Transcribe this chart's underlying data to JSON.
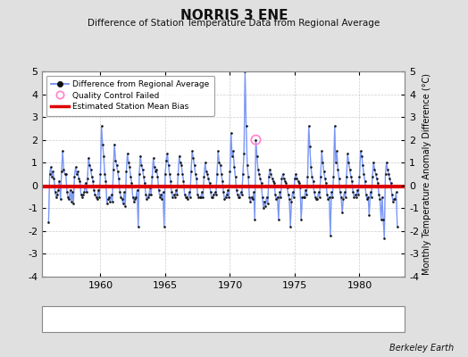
{
  "title": "NORRIS 3 ENE",
  "subtitle": "Difference of Station Temperature Data from Regional Average",
  "ylabel": "Monthly Temperature Anomaly Difference (°C)",
  "credit": "Berkeley Earth",
  "ylim": [
    -4,
    5
  ],
  "xlim": [
    1955.5,
    1983.5
  ],
  "bias": -0.05,
  "xticks": [
    1960,
    1965,
    1970,
    1975,
    1980
  ],
  "yticks": [
    -4,
    -3,
    -2,
    -1,
    0,
    1,
    2,
    3,
    4,
    5
  ],
  "bg_color": "#e0e0e0",
  "plot_bg_color": "#ffffff",
  "line_color": "#6688ee",
  "line_color_light": "#aabbff",
  "dot_color": "#111111",
  "bias_color": "#dd0000",
  "qc_fail_x": 1972.0,
  "qc_fail_y": 2.0,
  "data": [
    [
      1956.0,
      -1.6
    ],
    [
      1956.083,
      0.5
    ],
    [
      1956.167,
      0.8
    ],
    [
      1956.25,
      0.4
    ],
    [
      1956.333,
      0.6
    ],
    [
      1956.417,
      0.3
    ],
    [
      1956.5,
      -0.3
    ],
    [
      1956.583,
      -0.5
    ],
    [
      1956.667,
      -0.4
    ],
    [
      1956.75,
      -0.2
    ],
    [
      1956.833,
      0.2
    ],
    [
      1956.917,
      -0.6
    ],
    [
      1957.0,
      0.6
    ],
    [
      1957.083,
      1.5
    ],
    [
      1957.167,
      0.7
    ],
    [
      1957.25,
      0.5
    ],
    [
      1957.333,
      0.5
    ],
    [
      1957.417,
      -0.3
    ],
    [
      1957.5,
      -0.5
    ],
    [
      1957.583,
      -0.6
    ],
    [
      1957.667,
      -0.2
    ],
    [
      1957.75,
      -0.7
    ],
    [
      1957.833,
      -0.3
    ],
    [
      1957.917,
      -0.8
    ],
    [
      1958.0,
      0.4
    ],
    [
      1958.083,
      0.8
    ],
    [
      1958.167,
      0.5
    ],
    [
      1958.25,
      0.6
    ],
    [
      1958.333,
      0.3
    ],
    [
      1958.417,
      0.2
    ],
    [
      1958.5,
      -0.4
    ],
    [
      1958.583,
      -0.5
    ],
    [
      1958.667,
      -0.4
    ],
    [
      1958.75,
      -0.3
    ],
    [
      1958.833,
      0.1
    ],
    [
      1958.917,
      -0.3
    ],
    [
      1959.0,
      0.3
    ],
    [
      1959.083,
      1.2
    ],
    [
      1959.167,
      0.9
    ],
    [
      1959.25,
      0.7
    ],
    [
      1959.333,
      0.4
    ],
    [
      1959.417,
      0.2
    ],
    [
      1959.5,
      -0.2
    ],
    [
      1959.583,
      -0.4
    ],
    [
      1959.667,
      -0.5
    ],
    [
      1959.75,
      -0.6
    ],
    [
      1959.833,
      -0.2
    ],
    [
      1959.917,
      -0.5
    ],
    [
      1960.0,
      0.5
    ],
    [
      1960.083,
      2.6
    ],
    [
      1960.167,
      1.8
    ],
    [
      1960.25,
      1.3
    ],
    [
      1960.333,
      0.5
    ],
    [
      1960.417,
      0.2
    ],
    [
      1960.5,
      -0.8
    ],
    [
      1960.583,
      -0.6
    ],
    [
      1960.667,
      -0.5
    ],
    [
      1960.75,
      -0.7
    ],
    [
      1960.833,
      -0.4
    ],
    [
      1960.917,
      -0.7
    ],
    [
      1961.0,
      0.7
    ],
    [
      1961.083,
      1.8
    ],
    [
      1961.167,
      1.1
    ],
    [
      1961.25,
      0.9
    ],
    [
      1961.333,
      0.6
    ],
    [
      1961.417,
      0.3
    ],
    [
      1961.5,
      -0.3
    ],
    [
      1961.583,
      -0.5
    ],
    [
      1961.667,
      -0.6
    ],
    [
      1961.75,
      -0.8
    ],
    [
      1961.833,
      -0.3
    ],
    [
      1961.917,
      -0.9
    ],
    [
      1962.0,
      0.6
    ],
    [
      1962.083,
      1.4
    ],
    [
      1962.167,
      1.0
    ],
    [
      1962.25,
      0.8
    ],
    [
      1962.333,
      0.4
    ],
    [
      1962.417,
      0.1
    ],
    [
      1962.5,
      -0.5
    ],
    [
      1962.583,
      -0.7
    ],
    [
      1962.667,
      -0.6
    ],
    [
      1962.75,
      -0.5
    ],
    [
      1962.833,
      -0.2
    ],
    [
      1962.917,
      -1.8
    ],
    [
      1963.0,
      0.5
    ],
    [
      1963.083,
      1.3
    ],
    [
      1963.167,
      0.9
    ],
    [
      1963.25,
      0.7
    ],
    [
      1963.333,
      0.4
    ],
    [
      1963.417,
      0.1
    ],
    [
      1963.5,
      -0.4
    ],
    [
      1963.583,
      -0.6
    ],
    [
      1963.667,
      -0.5
    ],
    [
      1963.75,
      -0.4
    ],
    [
      1963.833,
      -0.1
    ],
    [
      1963.917,
      -0.4
    ],
    [
      1964.0,
      0.4
    ],
    [
      1964.083,
      1.2
    ],
    [
      1964.167,
      0.8
    ],
    [
      1964.25,
      0.6
    ],
    [
      1964.333,
      0.7
    ],
    [
      1964.417,
      0.4
    ],
    [
      1964.5,
      -0.2
    ],
    [
      1964.583,
      -0.5
    ],
    [
      1964.667,
      -0.4
    ],
    [
      1964.75,
      -0.6
    ],
    [
      1964.833,
      -0.3
    ],
    [
      1964.917,
      -1.8
    ],
    [
      1965.0,
      0.5
    ],
    [
      1965.083,
      1.1
    ],
    [
      1965.167,
      1.4
    ],
    [
      1965.25,
      0.9
    ],
    [
      1965.333,
      0.5
    ],
    [
      1965.417,
      0.2
    ],
    [
      1965.5,
      -0.3
    ],
    [
      1965.583,
      -0.5
    ],
    [
      1965.667,
      -0.4
    ],
    [
      1965.75,
      -0.5
    ],
    [
      1965.833,
      -0.2
    ],
    [
      1965.917,
      -0.4
    ],
    [
      1966.0,
      0.5
    ],
    [
      1966.083,
      1.3
    ],
    [
      1966.167,
      1.0
    ],
    [
      1966.25,
      0.9
    ],
    [
      1966.333,
      0.5
    ],
    [
      1966.417,
      0.2
    ],
    [
      1966.5,
      -0.4
    ],
    [
      1966.583,
      -0.5
    ],
    [
      1966.667,
      -0.5
    ],
    [
      1966.75,
      -0.6
    ],
    [
      1966.833,
      -0.3
    ],
    [
      1966.917,
      -0.5
    ],
    [
      1967.0,
      0.6
    ],
    [
      1967.083,
      1.5
    ],
    [
      1967.167,
      1.2
    ],
    [
      1967.25,
      0.9
    ],
    [
      1967.333,
      0.5
    ],
    [
      1967.417,
      0.3
    ],
    [
      1967.5,
      -0.4
    ],
    [
      1967.583,
      -0.5
    ],
    [
      1967.667,
      -0.5
    ],
    [
      1967.75,
      -0.5
    ],
    [
      1967.833,
      -0.3
    ],
    [
      1967.917,
      -0.5
    ],
    [
      1968.0,
      0.4
    ],
    [
      1968.083,
      1.0
    ],
    [
      1968.167,
      0.6
    ],
    [
      1968.25,
      0.5
    ],
    [
      1968.333,
      0.3
    ],
    [
      1968.417,
      0.1
    ],
    [
      1968.5,
      -0.3
    ],
    [
      1968.583,
      -0.5
    ],
    [
      1968.667,
      -0.5
    ],
    [
      1968.75,
      -0.4
    ],
    [
      1968.833,
      -0.3
    ],
    [
      1968.917,
      -0.4
    ],
    [
      1969.0,
      0.5
    ],
    [
      1969.083,
      1.5
    ],
    [
      1969.167,
      1.0
    ],
    [
      1969.25,
      0.9
    ],
    [
      1969.333,
      0.5
    ],
    [
      1969.417,
      0.2
    ],
    [
      1969.5,
      -0.3
    ],
    [
      1969.583,
      -0.6
    ],
    [
      1969.667,
      -0.5
    ],
    [
      1969.75,
      -0.4
    ],
    [
      1969.833,
      -0.2
    ],
    [
      1969.917,
      -0.5
    ],
    [
      1970.0,
      0.6
    ],
    [
      1970.083,
      2.3
    ],
    [
      1970.167,
      1.3
    ],
    [
      1970.25,
      1.5
    ],
    [
      1970.333,
      0.8
    ],
    [
      1970.417,
      0.4
    ],
    [
      1970.5,
      -0.2
    ],
    [
      1970.583,
      -0.4
    ],
    [
      1970.667,
      -0.5
    ],
    [
      1970.75,
      -0.5
    ],
    [
      1970.833,
      -0.3
    ],
    [
      1970.917,
      -0.4
    ],
    [
      1971.0,
      0.5
    ],
    [
      1971.083,
      1.4
    ],
    [
      1971.167,
      5.0
    ],
    [
      1971.25,
      2.6
    ],
    [
      1971.333,
      0.9
    ],
    [
      1971.417,
      0.4
    ],
    [
      1971.5,
      -0.5
    ],
    [
      1971.583,
      -0.7
    ],
    [
      1971.667,
      -0.5
    ],
    [
      1971.75,
      -0.6
    ],
    [
      1971.833,
      -0.3
    ],
    [
      1971.917,
      -1.5
    ],
    [
      1972.0,
      2.0
    ],
    [
      1972.083,
      1.3
    ],
    [
      1972.167,
      0.7
    ],
    [
      1972.25,
      0.5
    ],
    [
      1972.333,
      0.3
    ],
    [
      1972.417,
      0.1
    ],
    [
      1972.5,
      -0.5
    ],
    [
      1972.583,
      -1.0
    ],
    [
      1972.667,
      -0.7
    ],
    [
      1972.75,
      -0.9
    ],
    [
      1972.833,
      -0.5
    ],
    [
      1972.917,
      -0.8
    ],
    [
      1973.0,
      0.4
    ],
    [
      1973.083,
      0.7
    ],
    [
      1973.167,
      0.5
    ],
    [
      1973.25,
      0.3
    ],
    [
      1973.333,
      0.2
    ],
    [
      1973.417,
      0.1
    ],
    [
      1973.5,
      -0.4
    ],
    [
      1973.583,
      -0.6
    ],
    [
      1973.667,
      -0.5
    ],
    [
      1973.75,
      -1.5
    ],
    [
      1973.833,
      -0.3
    ],
    [
      1973.917,
      -0.5
    ],
    [
      1974.0,
      0.3
    ],
    [
      1974.083,
      0.5
    ],
    [
      1974.167,
      0.3
    ],
    [
      1974.25,
      0.2
    ],
    [
      1974.333,
      0.1
    ],
    [
      1974.417,
      -0.1
    ],
    [
      1974.5,
      -0.4
    ],
    [
      1974.583,
      -0.6
    ],
    [
      1974.667,
      -1.8
    ],
    [
      1974.75,
      -0.7
    ],
    [
      1974.833,
      -0.3
    ],
    [
      1974.917,
      -0.5
    ],
    [
      1975.0,
      0.3
    ],
    [
      1975.083,
      0.5
    ],
    [
      1975.167,
      0.3
    ],
    [
      1975.25,
      0.2
    ],
    [
      1975.333,
      0.1
    ],
    [
      1975.417,
      -0.1
    ],
    [
      1975.5,
      -1.5
    ],
    [
      1975.583,
      -0.5
    ],
    [
      1975.667,
      -0.5
    ],
    [
      1975.75,
      -0.5
    ],
    [
      1975.833,
      -0.2
    ],
    [
      1975.917,
      -0.4
    ],
    [
      1976.0,
      0.4
    ],
    [
      1976.083,
      2.6
    ],
    [
      1976.167,
      1.7
    ],
    [
      1976.25,
      0.8
    ],
    [
      1976.333,
      0.4
    ],
    [
      1976.417,
      0.2
    ],
    [
      1976.5,
      -0.3
    ],
    [
      1976.583,
      -0.5
    ],
    [
      1976.667,
      -0.6
    ],
    [
      1976.75,
      -0.6
    ],
    [
      1976.833,
      -0.3
    ],
    [
      1976.917,
      -0.5
    ],
    [
      1977.0,
      0.4
    ],
    [
      1977.083,
      1.5
    ],
    [
      1977.167,
      1.0
    ],
    [
      1977.25,
      0.6
    ],
    [
      1977.333,
      0.3
    ],
    [
      1977.417,
      0.1
    ],
    [
      1977.5,
      -0.4
    ],
    [
      1977.583,
      -0.6
    ],
    [
      1977.667,
      -0.5
    ],
    [
      1977.75,
      -2.2
    ],
    [
      1977.833,
      -0.3
    ],
    [
      1977.917,
      -0.5
    ],
    [
      1978.0,
      0.4
    ],
    [
      1978.083,
      2.6
    ],
    [
      1978.167,
      1.0
    ],
    [
      1978.25,
      1.5
    ],
    [
      1978.333,
      0.7
    ],
    [
      1978.417,
      0.3
    ],
    [
      1978.5,
      -0.3
    ],
    [
      1978.583,
      -0.5
    ],
    [
      1978.667,
      -1.2
    ],
    [
      1978.75,
      -0.6
    ],
    [
      1978.833,
      -0.3
    ],
    [
      1978.917,
      -0.5
    ],
    [
      1979.0,
      0.4
    ],
    [
      1979.083,
      1.4
    ],
    [
      1979.167,
      1.0
    ],
    [
      1979.25,
      0.7
    ],
    [
      1979.333,
      0.4
    ],
    [
      1979.417,
      0.2
    ],
    [
      1979.5,
      -0.3
    ],
    [
      1979.583,
      -0.5
    ],
    [
      1979.667,
      -0.4
    ],
    [
      1979.75,
      -0.5
    ],
    [
      1979.833,
      -0.2
    ],
    [
      1979.917,
      -0.4
    ],
    [
      1980.0,
      0.4
    ],
    [
      1980.083,
      1.5
    ],
    [
      1980.167,
      1.3
    ],
    [
      1980.25,
      0.9
    ],
    [
      1980.333,
      0.5
    ],
    [
      1980.417,
      0.2
    ],
    [
      1980.5,
      -0.4
    ],
    [
      1980.583,
      -0.6
    ],
    [
      1980.667,
      -0.5
    ],
    [
      1980.75,
      -1.3
    ],
    [
      1980.833,
      -0.3
    ],
    [
      1980.917,
      -0.5
    ],
    [
      1981.0,
      0.4
    ],
    [
      1981.083,
      1.0
    ],
    [
      1981.167,
      0.7
    ],
    [
      1981.25,
      0.5
    ],
    [
      1981.333,
      0.3
    ],
    [
      1981.417,
      0.1
    ],
    [
      1981.5,
      -0.4
    ],
    [
      1981.583,
      -0.6
    ],
    [
      1981.667,
      -1.5
    ],
    [
      1981.75,
      -0.5
    ],
    [
      1981.833,
      -1.5
    ],
    [
      1981.917,
      -2.3
    ],
    [
      1982.0,
      0.5
    ],
    [
      1982.083,
      1.0
    ],
    [
      1982.167,
      0.7
    ],
    [
      1982.25,
      0.5
    ],
    [
      1982.333,
      0.3
    ],
    [
      1982.417,
      0.1
    ],
    [
      1982.5,
      -0.4
    ],
    [
      1982.583,
      -0.7
    ],
    [
      1982.667,
      -0.6
    ],
    [
      1982.75,
      -0.6
    ],
    [
      1982.833,
      -0.3
    ],
    [
      1982.917,
      -1.8
    ]
  ]
}
